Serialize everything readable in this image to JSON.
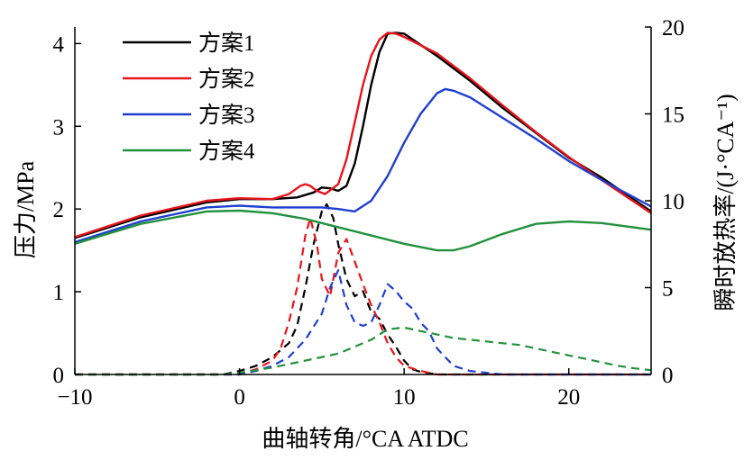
{
  "chart_data": {
    "type": "line",
    "xlabel": "曲轴转角/°CA ATDC",
    "ylabel_left": "压力/MPa",
    "ylabel_right": "瞬时放热率/(J·°CA⁻¹)",
    "xlim": [
      -10,
      25
    ],
    "ylim_left": [
      0,
      4.2
    ],
    "ylim_right": [
      0,
      20
    ],
    "x_ticks": [
      -10,
      0,
      10,
      20
    ],
    "x_tick_labels": [
      "−10",
      "0",
      "10",
      "20"
    ],
    "y_left_ticks": [
      0,
      1,
      2,
      3,
      4
    ],
    "y_left_tick_labels": [
      "0",
      "1",
      "2",
      "3",
      "4"
    ],
    "y_right_ticks": [
      0,
      5,
      10,
      15,
      20
    ],
    "y_right_tick_labels": [
      "0",
      "5",
      "10",
      "15",
      "20"
    ],
    "grid": false,
    "legend_position": "top-left",
    "legend": [
      "方案1",
      "方案2",
      "方案3",
      "方案4"
    ],
    "series": [
      {
        "name": "方案1",
        "color": "#000000",
        "pressure": {
          "x": [
            -10,
            -6,
            -2,
            0,
            2,
            3.5,
            4.5,
            5,
            5.5,
            6,
            6.5,
            7,
            7.5,
            8,
            8.5,
            9,
            9.5,
            10,
            12,
            14,
            16,
            18,
            20,
            22,
            25
          ],
          "y": [
            1.65,
            1.9,
            2.08,
            2.12,
            2.12,
            2.14,
            2.2,
            2.26,
            2.25,
            2.22,
            2.28,
            2.55,
            3.0,
            3.5,
            3.9,
            4.12,
            4.13,
            4.12,
            3.85,
            3.55,
            3.22,
            2.92,
            2.62,
            2.38,
            1.97
          ]
        },
        "heat_release": {
          "x": [
            -10,
            -1,
            0,
            1,
            2,
            3,
            3.5,
            4,
            4.5,
            5,
            5.3,
            5.7,
            6,
            6.5,
            7,
            7.5,
            8,
            8.5,
            9,
            9.5,
            10,
            10.5,
            11,
            12,
            25
          ],
          "y": [
            0,
            0,
            0.2,
            0.5,
            1,
            1.8,
            2.8,
            5,
            7.5,
            9.4,
            9.8,
            9,
            7.5,
            5.5,
            4.5,
            4.8,
            3.6,
            3.2,
            2.3,
            1.6,
            0.8,
            0.3,
            0.15,
            0,
            0
          ]
        }
      },
      {
        "name": "方案2",
        "color": "#e8141b",
        "pressure": {
          "x": [
            -10,
            -6,
            -2,
            0,
            2,
            3,
            3.7,
            4,
            4.3,
            4.7,
            5.2,
            6,
            6.5,
            7,
            7.5,
            8,
            8.5,
            9,
            9.5,
            10,
            12,
            14,
            16,
            18,
            20,
            22,
            25
          ],
          "y": [
            1.66,
            1.92,
            2.1,
            2.13,
            2.12,
            2.18,
            2.28,
            2.3,
            2.28,
            2.22,
            2.18,
            2.3,
            2.6,
            3.05,
            3.5,
            3.85,
            4.05,
            4.13,
            4.12,
            4.08,
            3.88,
            3.58,
            3.25,
            2.93,
            2.63,
            2.35,
            1.95
          ]
        },
        "heat_release": {
          "x": [
            -10,
            0,
            1,
            2,
            2.5,
            3,
            3.5,
            4,
            4.3,
            4.7,
            5,
            5.5,
            6,
            6.5,
            7,
            7.5,
            8,
            8.5,
            9,
            9.5,
            10,
            11,
            12,
            25
          ],
          "y": [
            0,
            0,
            0.3,
            0.8,
            1.5,
            3,
            5,
            8,
            9,
            7.5,
            5.5,
            4.5,
            7,
            7.8,
            6.5,
            5.2,
            4,
            3,
            1.8,
            1,
            0.5,
            0.2,
            0,
            0
          ]
        }
      },
      {
        "name": "方案3",
        "color": "#1f3fcf",
        "pressure": {
          "x": [
            -10,
            -6,
            -2,
            0,
            2,
            4,
            5,
            6,
            7,
            8,
            9,
            10,
            11,
            12,
            12.5,
            13,
            14,
            16,
            18,
            20,
            22,
            25
          ],
          "y": [
            1.6,
            1.85,
            2.02,
            2.04,
            2.02,
            2.02,
            2.02,
            2.0,
            1.97,
            2.1,
            2.4,
            2.8,
            3.15,
            3.4,
            3.45,
            3.43,
            3.35,
            3.1,
            2.85,
            2.58,
            2.35,
            2.03
          ]
        },
        "heat_release": {
          "x": [
            -10,
            0,
            1,
            2,
            3,
            4,
            5,
            5.5,
            6,
            6.5,
            7,
            7.5,
            8,
            8.5,
            9,
            9.5,
            10,
            10.5,
            11,
            11.5,
            12,
            13,
            14,
            15,
            16,
            25
          ],
          "y": [
            0,
            0,
            0.2,
            0.5,
            1,
            2,
            3.5,
            5,
            6,
            4,
            3,
            2.8,
            3,
            4,
            5.2,
            4.8,
            4.2,
            3.8,
            3,
            2.5,
            1.5,
            0.5,
            0.2,
            0.1,
            0,
            0
          ]
        }
      },
      {
        "name": "方案4",
        "color": "#22913b",
        "pressure": {
          "x": [
            -10,
            -6,
            -2,
            0,
            2,
            4,
            6,
            8,
            10,
            12,
            13,
            14,
            16,
            18,
            20,
            22,
            25
          ],
          "y": [
            1.58,
            1.82,
            1.97,
            1.98,
            1.95,
            1.88,
            1.78,
            1.68,
            1.58,
            1.5,
            1.5,
            1.55,
            1.7,
            1.82,
            1.85,
            1.83,
            1.75
          ]
        },
        "heat_release": {
          "x": [
            -10,
            -1,
            0,
            2,
            4,
            6,
            7,
            8,
            9,
            10,
            11,
            12,
            13,
            14,
            15,
            16,
            17,
            18,
            19,
            20,
            21,
            22,
            23,
            24,
            25
          ],
          "y": [
            0,
            0,
            0.1,
            0.4,
            0.8,
            1.2,
            1.6,
            2,
            2.6,
            2.7,
            2.5,
            2.3,
            2.1,
            2.0,
            1.9,
            1.8,
            1.7,
            1.5,
            1.3,
            1.1,
            0.9,
            0.7,
            0.5,
            0.35,
            0.25
          ]
        }
      }
    ]
  }
}
